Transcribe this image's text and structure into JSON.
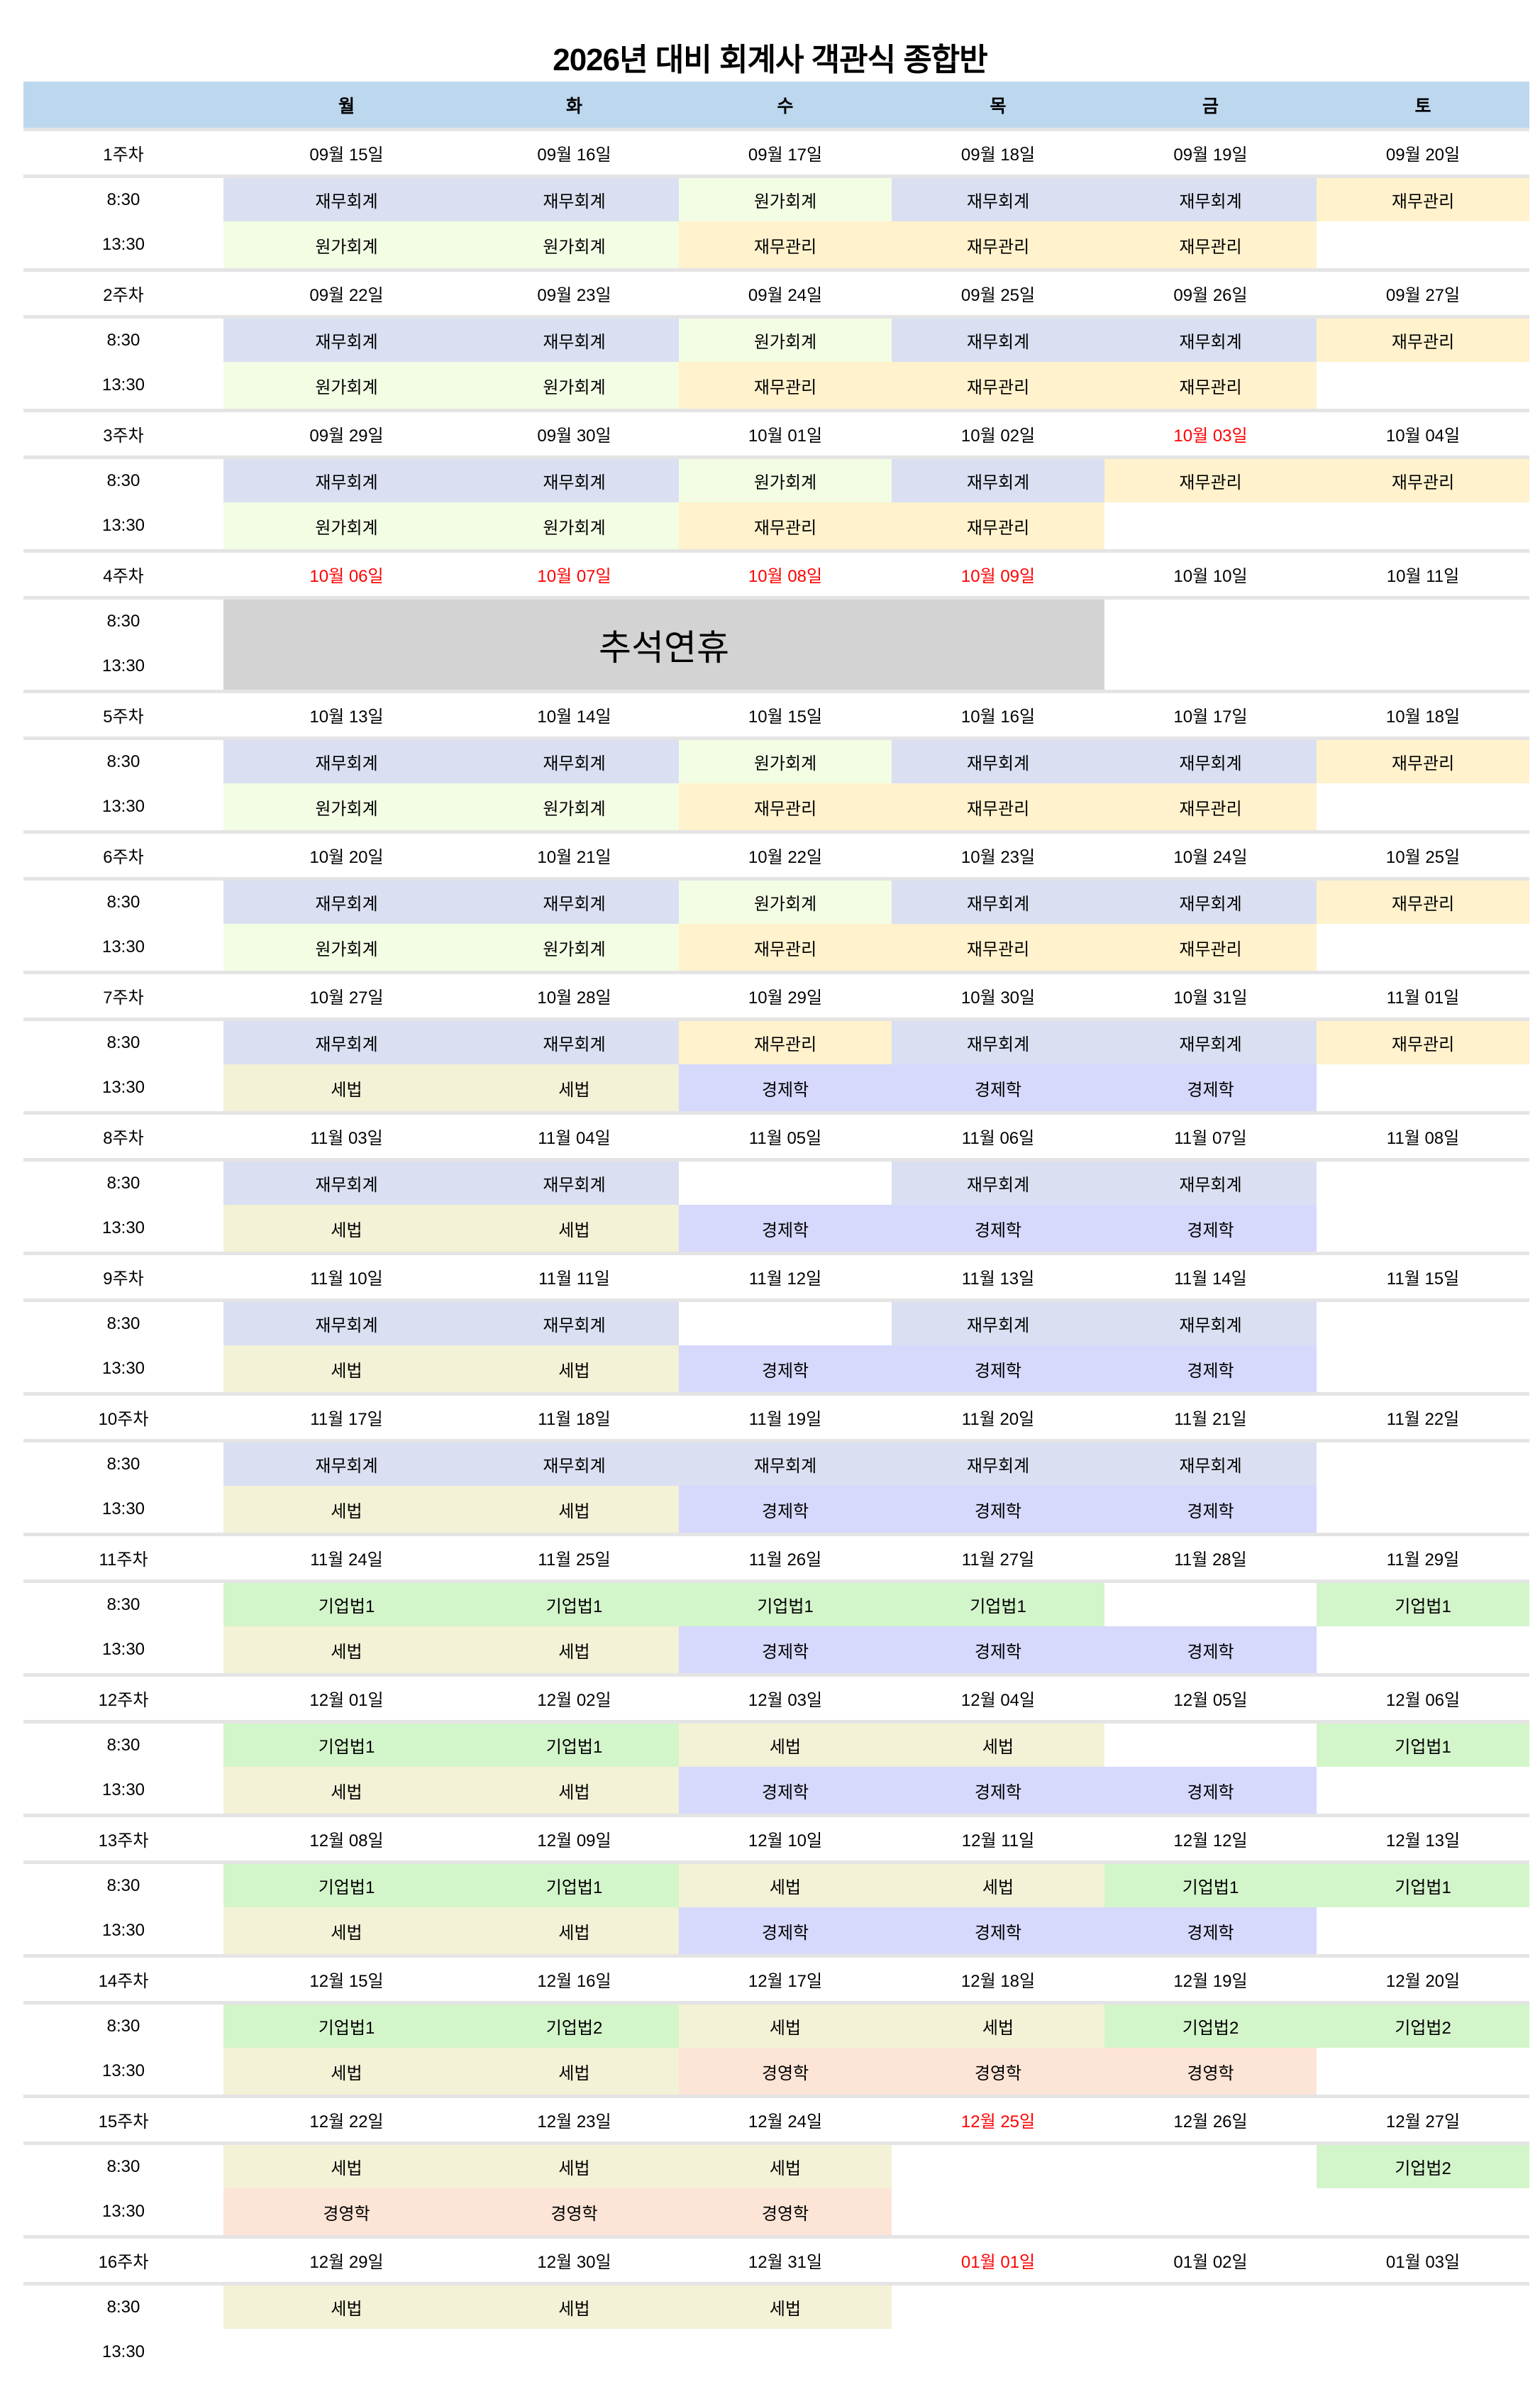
{
  "title": "2026년 대비 회계사 객관식 종합반",
  "header": {
    "days": [
      "월",
      "화",
      "수",
      "목",
      "금",
      "토"
    ]
  },
  "times": [
    "8:30",
    "13:30"
  ],
  "subject_colors": {
    "재무회계": "#dae0f2",
    "원가회계": "#f2fde4",
    "재무관리": "#fff2cc",
    "세법": "#f3f1d6",
    "경제학": "#d6d8fc",
    "기업법1": "#d3f5ca",
    "기업법2": "#d3f5ca",
    "경영학": "#fce4d6"
  },
  "holiday_color": "#ff0000",
  "weeks": [
    {
      "label": "1주차",
      "dates": [
        "09월 15일",
        "09월 16일",
        "09월 17일",
        "09월 18일",
        "09월 19일",
        "09월 20일"
      ],
      "red": [],
      "am": [
        "재무회계",
        "재무회계",
        "원가회계",
        "재무회계",
        "재무회계",
        "재무관리"
      ],
      "pm": [
        "원가회계",
        "원가회계",
        "재무관리",
        "재무관리",
        "재무관리",
        ""
      ]
    },
    {
      "label": "2주차",
      "dates": [
        "09월 22일",
        "09월 23일",
        "09월 24일",
        "09월 25일",
        "09월 26일",
        "09월 27일"
      ],
      "red": [],
      "am": [
        "재무회계",
        "재무회계",
        "원가회계",
        "재무회계",
        "재무회계",
        "재무관리"
      ],
      "pm": [
        "원가회계",
        "원가회계",
        "재무관리",
        "재무관리",
        "재무관리",
        ""
      ]
    },
    {
      "label": "3주차",
      "dates": [
        "09월 29일",
        "09월 30일",
        "10월 01일",
        "10월 02일",
        "10월 03일",
        "10월 04일"
      ],
      "red": [
        4
      ],
      "am": [
        "재무회계",
        "재무회계",
        "원가회계",
        "재무회계",
        "재무관리",
        "재무관리"
      ],
      "pm": [
        "원가회계",
        "원가회계",
        "재무관리",
        "재무관리",
        "",
        ""
      ]
    },
    {
      "label": "4주차",
      "dates": [
        "10월 06일",
        "10월 07일",
        "10월 08일",
        "10월 09일",
        "10월 10일",
        "10월 11일"
      ],
      "red": [
        0,
        1,
        2,
        3
      ],
      "am": [
        "",
        "",
        "",
        "",
        "",
        ""
      ],
      "pm": [
        "",
        "",
        "",
        "",
        "",
        ""
      ],
      "merged": {
        "text": "추석연휴",
        "from": 0,
        "to": 3
      }
    },
    {
      "label": "5주차",
      "dates": [
        "10월 13일",
        "10월 14일",
        "10월 15일",
        "10월 16일",
        "10월 17일",
        "10월 18일"
      ],
      "red": [],
      "am": [
        "재무회계",
        "재무회계",
        "원가회계",
        "재무회계",
        "재무회계",
        "재무관리"
      ],
      "pm": [
        "원가회계",
        "원가회계",
        "재무관리",
        "재무관리",
        "재무관리",
        ""
      ]
    },
    {
      "label": "6주차",
      "dates": [
        "10월 20일",
        "10월 21일",
        "10월 22일",
        "10월 23일",
        "10월 24일",
        "10월 25일"
      ],
      "red": [],
      "am": [
        "재무회계",
        "재무회계",
        "원가회계",
        "재무회계",
        "재무회계",
        "재무관리"
      ],
      "pm": [
        "원가회계",
        "원가회계",
        "재무관리",
        "재무관리",
        "재무관리",
        ""
      ]
    },
    {
      "label": "7주차",
      "dates": [
        "10월 27일",
        "10월 28일",
        "10월 29일",
        "10월 30일",
        "10월 31일",
        "11월 01일"
      ],
      "red": [],
      "am": [
        "재무회계",
        "재무회계",
        "재무관리",
        "재무회계",
        "재무회계",
        "재무관리"
      ],
      "pm": [
        "세법",
        "세법",
        "경제학",
        "경제학",
        "경제학",
        ""
      ]
    },
    {
      "label": "8주차",
      "dates": [
        "11월 03일",
        "11월 04일",
        "11월 05일",
        "11월 06일",
        "11월 07일",
        "11월 08일"
      ],
      "red": [],
      "am": [
        "재무회계",
        "재무회계",
        "",
        "재무회계",
        "재무회계",
        ""
      ],
      "pm": [
        "세법",
        "세법",
        "경제학",
        "경제학",
        "경제학",
        ""
      ]
    },
    {
      "label": "9주차",
      "dates": [
        "11월 10일",
        "11월 11일",
        "11월 12일",
        "11월 13일",
        "11월 14일",
        "11월 15일"
      ],
      "red": [],
      "am": [
        "재무회계",
        "재무회계",
        "",
        "재무회계",
        "재무회계",
        ""
      ],
      "pm": [
        "세법",
        "세법",
        "경제학",
        "경제학",
        "경제학",
        ""
      ]
    },
    {
      "label": "10주차",
      "dates": [
        "11월 17일",
        "11월 18일",
        "11월 19일",
        "11월 20일",
        "11월 21일",
        "11월 22일"
      ],
      "red": [],
      "am": [
        "재무회계",
        "재무회계",
        "재무회계",
        "재무회계",
        "재무회계",
        ""
      ],
      "pm": [
        "세법",
        "세법",
        "경제학",
        "경제학",
        "경제학",
        ""
      ]
    },
    {
      "label": "11주차",
      "dates": [
        "11월 24일",
        "11월 25일",
        "11월 26일",
        "11월 27일",
        "11월 28일",
        "11월 29일"
      ],
      "red": [],
      "am": [
        "기업법1",
        "기업법1",
        "기업법1",
        "기업법1",
        "",
        "기업법1"
      ],
      "pm": [
        "세법",
        "세법",
        "경제학",
        "경제학",
        "경제학",
        ""
      ]
    },
    {
      "label": "12주차",
      "dates": [
        "12월 01일",
        "12월 02일",
        "12월 03일",
        "12월 04일",
        "12월 05일",
        "12월 06일"
      ],
      "red": [],
      "am": [
        "기업법1",
        "기업법1",
        "세법",
        "세법",
        "",
        "기업법1"
      ],
      "pm": [
        "세법",
        "세법",
        "경제학",
        "경제학",
        "경제학",
        ""
      ]
    },
    {
      "label": "13주차",
      "dates": [
        "12월 08일",
        "12월 09일",
        "12월 10일",
        "12월 11일",
        "12월 12일",
        "12월 13일"
      ],
      "red": [],
      "am": [
        "기업법1",
        "기업법1",
        "세법",
        "세법",
        "기업법1",
        "기업법1"
      ],
      "pm": [
        "세법",
        "세법",
        "경제학",
        "경제학",
        "경제학",
        ""
      ]
    },
    {
      "label": "14주차",
      "dates": [
        "12월 15일",
        "12월 16일",
        "12월 17일",
        "12월 18일",
        "12월 19일",
        "12월 20일"
      ],
      "red": [],
      "am": [
        "기업법1",
        "기업법2",
        "세법",
        "세법",
        "기업법2",
        "기업법2"
      ],
      "pm": [
        "세법",
        "세법",
        "경영학",
        "경영학",
        "경영학",
        ""
      ]
    },
    {
      "label": "15주차",
      "dates": [
        "12월 22일",
        "12월 23일",
        "12월 24일",
        "12월 25일",
        "12월 26일",
        "12월 27일"
      ],
      "red": [
        3
      ],
      "am": [
        "세법",
        "세법",
        "세법",
        "",
        "",
        "기업법2"
      ],
      "pm": [
        "경영학",
        "경영학",
        "경영학",
        "",
        "",
        ""
      ]
    },
    {
      "label": "16주차",
      "dates": [
        "12월 29일",
        "12월 30일",
        "12월 31일",
        "01월 01일",
        "01월 02일",
        "01월 03일"
      ],
      "red": [
        3
      ],
      "am": [
        "세법",
        "세법",
        "세법",
        "",
        "",
        ""
      ],
      "pm": [
        "",
        "",
        "",
        "",
        "",
        ""
      ]
    }
  ]
}
